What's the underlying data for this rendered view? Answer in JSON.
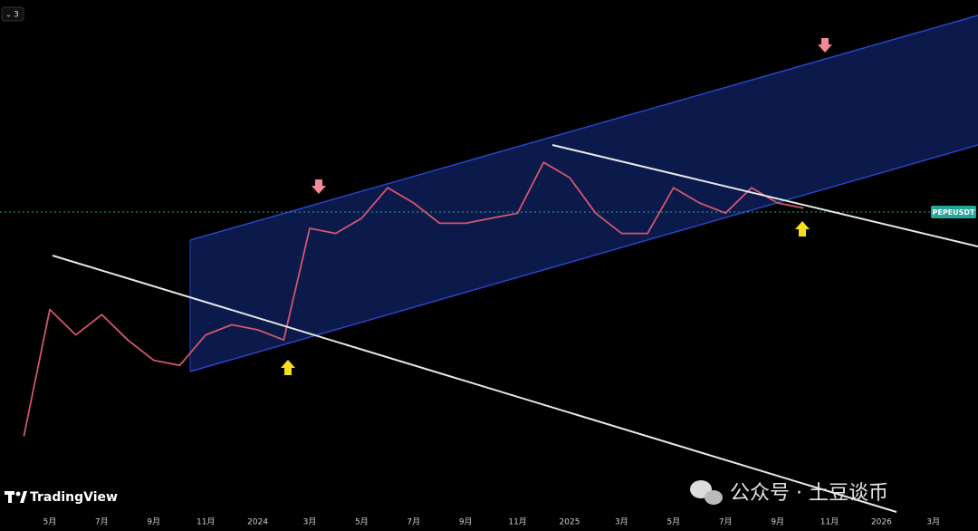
{
  "chart_data": {
    "type": "line",
    "symbol": "PEPEUSDT",
    "badge": "3",
    "brand": "TradingView",
    "watermark": "公众号 · 土豆谈币",
    "categories": [
      null,
      "5月",
      null,
      "7月",
      null,
      "9月",
      null,
      "11月",
      null,
      "2024",
      null,
      "3月",
      null,
      "5月",
      null,
      "7月",
      null,
      "9月",
      null,
      "11月",
      null,
      "2025",
      null,
      "3月",
      null,
      "5月",
      null,
      "7月",
      null,
      "9月",
      null,
      "11月",
      null,
      "2026",
      null,
      "3月"
    ],
    "series": [
      {
        "color": "#d2566e",
        "values": [
          14,
          39,
          34,
          38,
          33,
          29,
          28,
          34,
          36,
          35,
          33,
          55,
          54,
          57,
          63,
          60,
          56,
          56,
          57,
          58,
          68,
          65,
          58,
          54,
          54,
          63,
          60,
          58,
          63,
          60,
          59,
          null,
          null,
          null,
          null,
          null
        ]
      }
    ],
    "ylim": [
      0,
      100
    ]
  }
}
